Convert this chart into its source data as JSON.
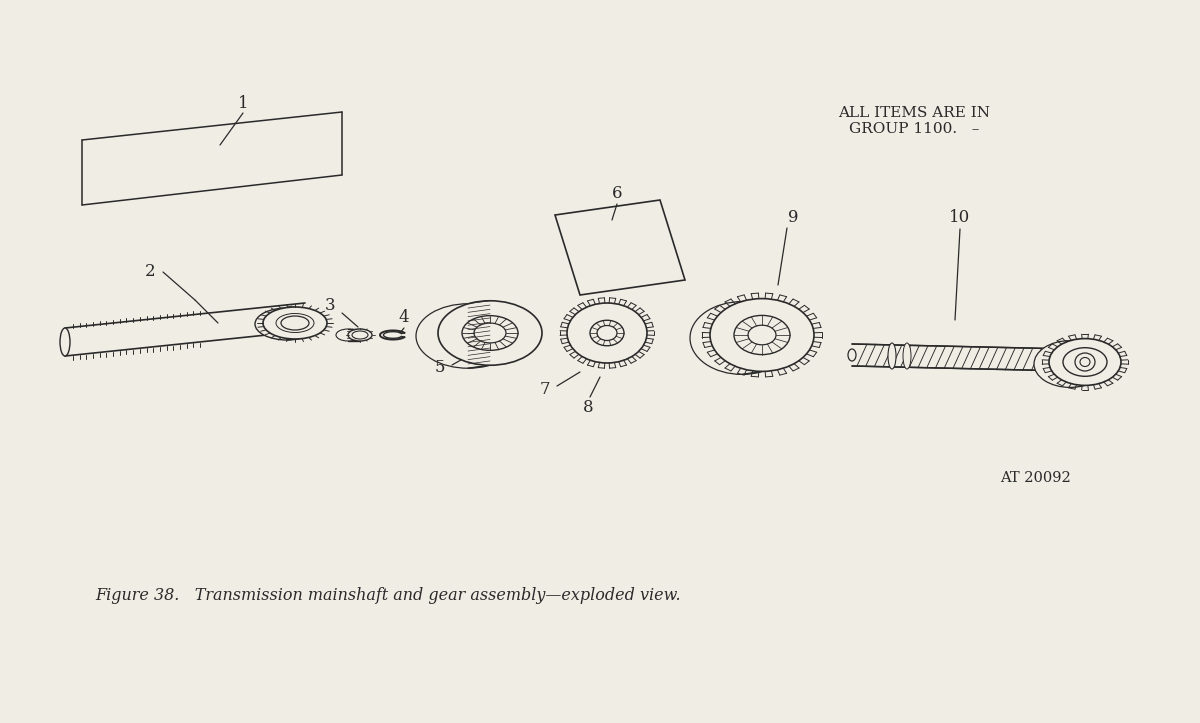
{
  "bg_color": "#f0ede5",
  "line_color": "#2a2a2a",
  "title_text": "Figure 38.   Transmission mainshaft and gear assembly—exploded view.",
  "note_text": "ALL ITEMS ARE IN\nGROUP 1100.   –",
  "part_number": "AT 20092",
  "figsize": [
    12.0,
    7.23
  ],
  "dpi": 100
}
